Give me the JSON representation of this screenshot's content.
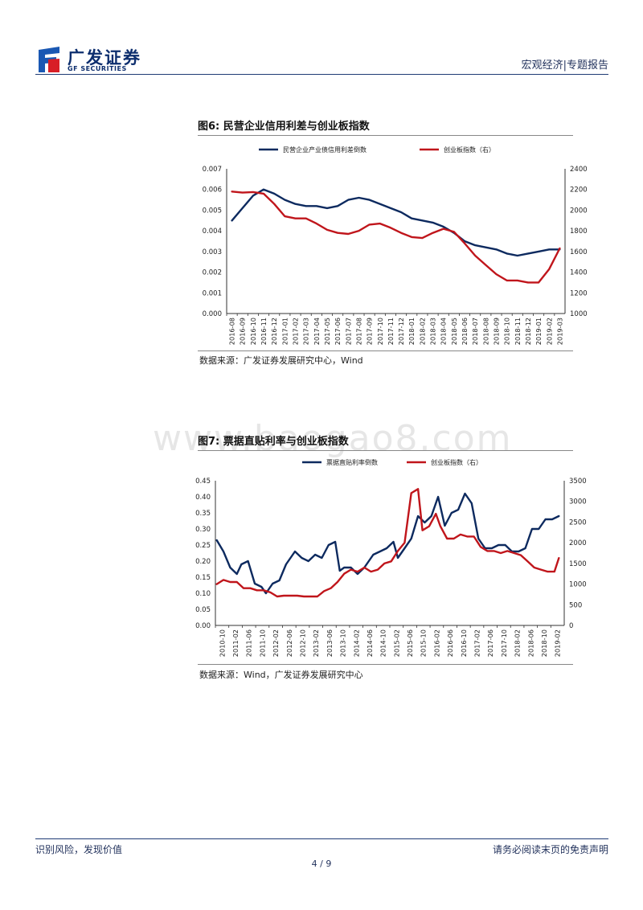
{
  "header": {
    "logo_cn": "广发证券",
    "logo_en": "GF SECURITIES",
    "right_text": "宏观经济|专题报告"
  },
  "watermark": "www.baogao8.com",
  "charts": [
    {
      "title": "图6:  民营企业信用利差与创业板指数",
      "source": "数据来源：广发证券发展研究中心，Wind",
      "chart_data": {
        "type": "line",
        "x": [
          "2016-08",
          "2016-09",
          "2016-10",
          "2016-11",
          "2016-12",
          "2017-01",
          "2017-02",
          "2017-03",
          "2017-04",
          "2017-05",
          "2017-06",
          "2017-07",
          "2017-08",
          "2017-09",
          "2017-10",
          "2017-11",
          "2017-12",
          "2018-01",
          "2018-02",
          "2018-03",
          "2018-04",
          "2018-05",
          "2018-06",
          "2018-07",
          "2018-08",
          "2018-09",
          "2018-10",
          "2018-11",
          "2018-12",
          "2019-01",
          "2019-02",
          "2019-03"
        ],
        "series": [
          {
            "name": "民营企业产业债信用利差倒数",
            "axis": "left",
            "color": "#0d2a5f",
            "values": [
              0.0045,
              0.0051,
              0.0057,
              0.006,
              0.0058,
              0.0055,
              0.0053,
              0.0052,
              0.0052,
              0.0051,
              0.0052,
              0.0055,
              0.0056,
              0.0055,
              0.0053,
              0.0051,
              0.0049,
              0.0046,
              0.0045,
              0.0044,
              0.0042,
              0.0039,
              0.0035,
              0.0033,
              0.0032,
              0.0031,
              0.0029,
              0.0028,
              0.0029,
              0.003,
              0.0031,
              0.0031
            ]
          },
          {
            "name": "创业板指数（右）",
            "axis": "right",
            "color": "#c0151b",
            "values": [
              2180,
              2170,
              2175,
              2160,
              2060,
              1940,
              1920,
              1920,
              1870,
              1810,
              1780,
              1770,
              1800,
              1860,
              1870,
              1830,
              1780,
              1740,
              1730,
              1780,
              1820,
              1790,
              1680,
              1560,
              1470,
              1380,
              1320,
              1320,
              1300,
              1300,
              1430,
              1630
            ]
          }
        ],
        "y_left": {
          "min": 0,
          "max": 0.007,
          "ticks": [
            "0.000",
            "0.001",
            "0.002",
            "0.003",
            "0.004",
            "0.005",
            "0.006",
            "0.007"
          ]
        },
        "y_right": {
          "min": 1000,
          "max": 2400,
          "ticks": [
            "1000",
            "1200",
            "1400",
            "1600",
            "1800",
            "2000",
            "2200",
            "2400"
          ]
        },
        "legend_position": "top"
      }
    },
    {
      "title": "图7:  票据直贴利率与创业板指数",
      "source": "数据来源：Wind，广发证券发展研究中心",
      "chart_data": {
        "type": "line",
        "x": [
          "2010-10",
          "2011-02",
          "2011-06",
          "2011-10",
          "2012-02",
          "2012-06",
          "2012-10",
          "2013-02",
          "2013-06",
          "2013-10",
          "2014-02",
          "2014-06",
          "2014-10",
          "2015-02",
          "2015-06",
          "2015-10",
          "2016-02",
          "2016-06",
          "2016-10",
          "2017-02",
          "2017-06",
          "2017-10",
          "2018-02",
          "2018-06",
          "2018-10",
          "2019-02"
        ],
        "tick_labels": [
          "2010-10",
          "2011-02",
          "2011-06",
          "2011-10",
          "2012-02",
          "2012-06",
          "2012-10",
          "2013-02",
          "2013-06",
          "2013-10",
          "2014-02",
          "2014-06",
          "2014-10",
          "2015-02",
          "2015-06",
          "2015-10",
          "2016-02",
          "2016-06",
          "2016-10",
          "2017-02",
          "2017-06",
          "2017-10",
          "2018-02",
          "2018-06",
          "2018-10",
          "2019-02"
        ],
        "series": [
          {
            "name": "票据直贴利率倒数",
            "axis": "left",
            "color": "#0d2a5f",
            "points": [
              [
                0,
                0.265
              ],
              [
                0.3,
                0.23
              ],
              [
                0.6,
                0.18
              ],
              [
                0.9,
                0.16
              ],
              [
                1.1,
                0.19
              ],
              [
                1.4,
                0.2
              ],
              [
                1.7,
                0.13
              ],
              [
                2.0,
                0.12
              ],
              [
                2.2,
                0.1
              ],
              [
                2.5,
                0.13
              ],
              [
                2.8,
                0.14
              ],
              [
                3.1,
                0.19
              ],
              [
                3.5,
                0.23
              ],
              [
                3.8,
                0.21
              ],
              [
                4.1,
                0.2
              ],
              [
                4.4,
                0.22
              ],
              [
                4.7,
                0.21
              ],
              [
                5.0,
                0.25
              ],
              [
                5.3,
                0.26
              ],
              [
                5.5,
                0.17
              ],
              [
                5.7,
                0.18
              ],
              [
                6.0,
                0.18
              ],
              [
                6.3,
                0.16
              ],
              [
                6.6,
                0.18
              ],
              [
                7.0,
                0.22
              ],
              [
                7.3,
                0.23
              ],
              [
                7.6,
                0.24
              ],
              [
                7.9,
                0.26
              ],
              [
                8.1,
                0.21
              ],
              [
                8.4,
                0.24
              ],
              [
                8.7,
                0.27
              ],
              [
                9.0,
                0.34
              ],
              [
                9.3,
                0.32
              ],
              [
                9.6,
                0.34
              ],
              [
                9.9,
                0.4
              ],
              [
                10.2,
                0.31
              ],
              [
                10.5,
                0.35
              ],
              [
                10.8,
                0.36
              ],
              [
                11.1,
                0.41
              ],
              [
                11.4,
                0.38
              ],
              [
                11.7,
                0.27
              ],
              [
                12.0,
                0.24
              ],
              [
                12.3,
                0.24
              ],
              [
                12.6,
                0.25
              ],
              [
                12.9,
                0.25
              ],
              [
                13.2,
                0.23
              ],
              [
                13.5,
                0.23
              ],
              [
                13.8,
                0.24
              ],
              [
                14.1,
                0.3
              ],
              [
                14.4,
                0.3
              ],
              [
                14.7,
                0.33
              ],
              [
                15.0,
                0.33
              ],
              [
                15.3,
                0.34
              ]
            ]
          },
          {
            "name": "创业板指数（右）",
            "axis": "right",
            "color": "#c0151b",
            "points": [
              [
                0,
                1000
              ],
              [
                0.3,
                1100
              ],
              [
                0.6,
                1050
              ],
              [
                0.9,
                1050
              ],
              [
                1.2,
                900
              ],
              [
                1.5,
                900
              ],
              [
                1.8,
                850
              ],
              [
                2.1,
                850
              ],
              [
                2.4,
                800
              ],
              [
                2.7,
                700
              ],
              [
                3.0,
                720
              ],
              [
                3.3,
                720
              ],
              [
                3.6,
                720
              ],
              [
                3.9,
                700
              ],
              [
                4.2,
                700
              ],
              [
                4.5,
                700
              ],
              [
                4.8,
                830
              ],
              [
                5.1,
                900
              ],
              [
                5.4,
                1050
              ],
              [
                5.7,
                1250
              ],
              [
                6.0,
                1350
              ],
              [
                6.3,
                1300
              ],
              [
                6.6,
                1400
              ],
              [
                6.9,
                1300
              ],
              [
                7.2,
                1350
              ],
              [
                7.5,
                1500
              ],
              [
                7.8,
                1550
              ],
              [
                8.1,
                1800
              ],
              [
                8.4,
                2000
              ],
              [
                8.7,
                3200
              ],
              [
                9.0,
                3300
              ],
              [
                9.2,
                2300
              ],
              [
                9.5,
                2400
              ],
              [
                9.8,
                2700
              ],
              [
                10.0,
                2400
              ],
              [
                10.3,
                2100
              ],
              [
                10.6,
                2100
              ],
              [
                10.9,
                2200
              ],
              [
                11.2,
                2150
              ],
              [
                11.5,
                2150
              ],
              [
                11.8,
                1900
              ],
              [
                12.1,
                1800
              ],
              [
                12.4,
                1800
              ],
              [
                12.7,
                1750
              ],
              [
                13.0,
                1800
              ],
              [
                13.3,
                1750
              ],
              [
                13.6,
                1700
              ],
              [
                13.9,
                1550
              ],
              [
                14.2,
                1400
              ],
              [
                14.5,
                1350
              ],
              [
                14.8,
                1300
              ],
              [
                15.1,
                1300
              ],
              [
                15.3,
                1630
              ]
            ]
          }
        ],
        "x_index_max": 15.3,
        "y_left": {
          "min": 0,
          "max": 0.45,
          "ticks": [
            "0.00",
            "0.05",
            "0.10",
            "0.15",
            "0.20",
            "0.25",
            "0.30",
            "0.35",
            "0.40",
            "0.45"
          ]
        },
        "y_right": {
          "min": 0,
          "max": 3500,
          "ticks": [
            "0",
            "500",
            "1000",
            "1500",
            "2000",
            "2500",
            "3000",
            "3500"
          ]
        },
        "legend_position": "top"
      }
    }
  ],
  "footer": {
    "left": "识别风险，发现价值",
    "right": "请务必阅读末页的免责声明",
    "page": "4 / 9"
  }
}
